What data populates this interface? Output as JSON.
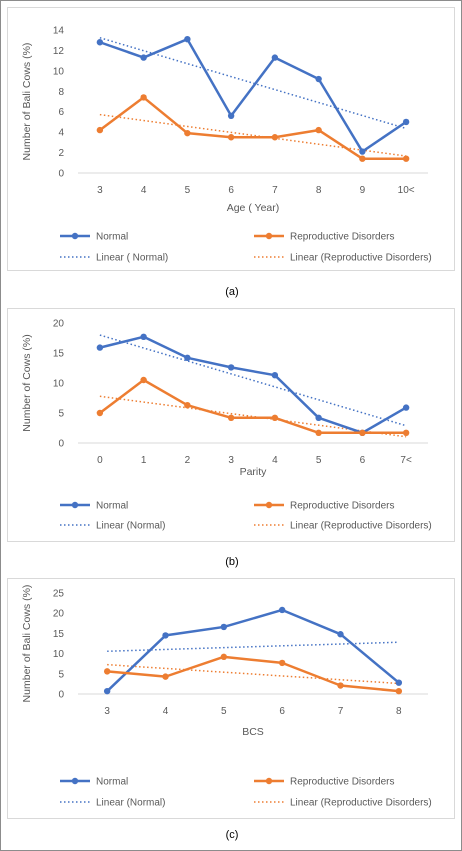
{
  "figure": {
    "captions": [
      "(a)",
      "(b)",
      "(c)"
    ]
  },
  "chart_data": [
    {
      "type": "line",
      "xlabel": "Age ( Year)",
      "ylabel": "Number of Bali Cows (%)",
      "categories": [
        "3",
        "4",
        "5",
        "6",
        "7",
        "8",
        "9",
        "10<"
      ],
      "ylim": [
        0,
        14
      ],
      "yticks": [
        0,
        2,
        4,
        6,
        8,
        10,
        12,
        14
      ],
      "grid": false,
      "legend_position": "bottom",
      "series": [
        {
          "name": "Normal",
          "color": "#4472C4",
          "values": [
            12.8,
            11.3,
            13.1,
            5.6,
            11.3,
            9.2,
            2.1,
            5.0
          ]
        },
        {
          "name": "Reproductive Disorders",
          "color": "#ED7D31",
          "values": [
            4.2,
            7.4,
            3.9,
            3.5,
            3.5,
            4.2,
            1.4,
            1.4
          ]
        }
      ],
      "trendlines": [
        {
          "name": "Linear ( Normal)",
          "color": "#4472C4",
          "style": "dotted",
          "of": "Normal"
        },
        {
          "name": "Linear (Reproductive Disorders)",
          "color": "#ED7D31",
          "style": "dotted",
          "of": "Reproductive Disorders"
        }
      ]
    },
    {
      "type": "line",
      "xlabel": "Parity",
      "ylabel": "Number of Cows (%)",
      "categories": [
        "0",
        "1",
        "2",
        "3",
        "4",
        "5",
        "6",
        "7<"
      ],
      "ylim": [
        0,
        20
      ],
      "yticks": [
        0,
        5,
        10,
        15,
        20
      ],
      "grid": false,
      "legend_position": "bottom",
      "series": [
        {
          "name": "Normal",
          "color": "#4472C4",
          "values": [
            15.9,
            17.7,
            14.2,
            12.6,
            11.3,
            4.2,
            1.7,
            5.9
          ]
        },
        {
          "name": "Reproductive Disorders",
          "color": "#ED7D31",
          "values": [
            5.0,
            10.5,
            6.3,
            4.2,
            4.2,
            1.7,
            1.7,
            1.7
          ]
        }
      ],
      "trendlines": [
        {
          "name": "Linear (Normal)",
          "color": "#4472C4",
          "style": "dotted",
          "of": "Normal"
        },
        {
          "name": "Linear (Reproductive Disorders)",
          "color": "#ED7D31",
          "style": "dotted",
          "of": "Reproductive Disorders"
        }
      ]
    },
    {
      "type": "line",
      "xlabel": "BCS",
      "ylabel": "Number of Bali Cows (%)",
      "categories": [
        "3",
        "4",
        "5",
        "6",
        "7",
        "8"
      ],
      "ylim": [
        0,
        25
      ],
      "yticks": [
        0,
        5,
        10,
        15,
        20,
        25
      ],
      "grid": false,
      "legend_position": "bottom",
      "series": [
        {
          "name": "Normal",
          "color": "#4472C4",
          "values": [
            0.7,
            14.5,
            16.6,
            20.8,
            14.8,
            2.8
          ]
        },
        {
          "name": "Reproductive Disorders",
          "color": "#ED7D31",
          "values": [
            5.6,
            4.3,
            9.2,
            7.7,
            2.1,
            0.7
          ]
        }
      ],
      "trendlines": [
        {
          "name": "Linear (Normal)",
          "color": "#4472C4",
          "style": "dotted",
          "of": "Normal"
        },
        {
          "name": "Linear (Reproductive Disorders)",
          "color": "#ED7D31",
          "style": "dotted",
          "of": "Reproductive Disorders"
        }
      ]
    }
  ]
}
